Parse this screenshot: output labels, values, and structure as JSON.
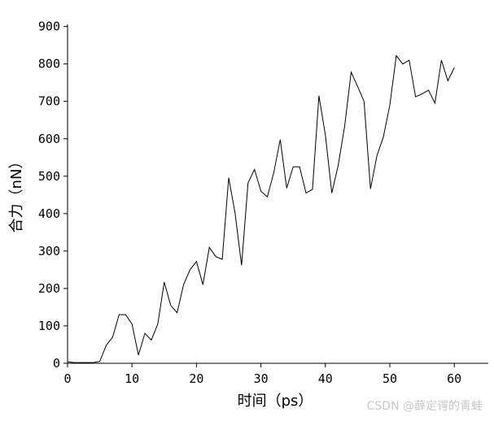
{
  "chart_data": {
    "type": "line",
    "xlabel": "时间（ps）",
    "ylabel": "合力（nN）",
    "xlim": [
      0,
      65
    ],
    "ylim": [
      0,
      900
    ],
    "xticks": [
      0,
      10,
      20,
      30,
      40,
      50,
      60
    ],
    "yticks": [
      0,
      100,
      200,
      300,
      400,
      500,
      600,
      700,
      800,
      900
    ],
    "grid": false,
    "legend": "none",
    "line_color": "#000000",
    "series": [
      {
        "x": [
          0,
          1,
          2,
          3,
          4,
          5,
          6,
          7,
          8,
          9,
          10,
          11,
          12,
          13,
          14,
          15,
          16,
          17,
          18,
          19,
          20,
          21,
          22,
          23,
          24,
          25,
          26,
          27,
          28,
          29,
          30,
          31,
          32,
          33,
          34,
          35,
          36,
          37,
          38,
          39,
          40,
          41,
          42,
          43,
          44,
          45,
          46,
          47,
          48,
          49,
          50,
          51,
          52,
          53,
          54,
          55,
          56,
          57,
          58,
          59,
          60
        ],
        "values": [
          4,
          2,
          2,
          2,
          2,
          5,
          48,
          70,
          130,
          130,
          105,
          22,
          80,
          62,
          105,
          217,
          155,
          135,
          210,
          250,
          272,
          210,
          310,
          285,
          278,
          496,
          400,
          262,
          482,
          518,
          460,
          445,
          510,
          598,
          468,
          525,
          525,
          455,
          465,
          715,
          610,
          455,
          530,
          635,
          778,
          740,
          700,
          466,
          555,
          605,
          690,
          822,
          800,
          810,
          712,
          720,
          730,
          695,
          810,
          755,
          790
        ]
      }
    ]
  },
  "watermark": "CSDN @薛定谔的青蛙"
}
